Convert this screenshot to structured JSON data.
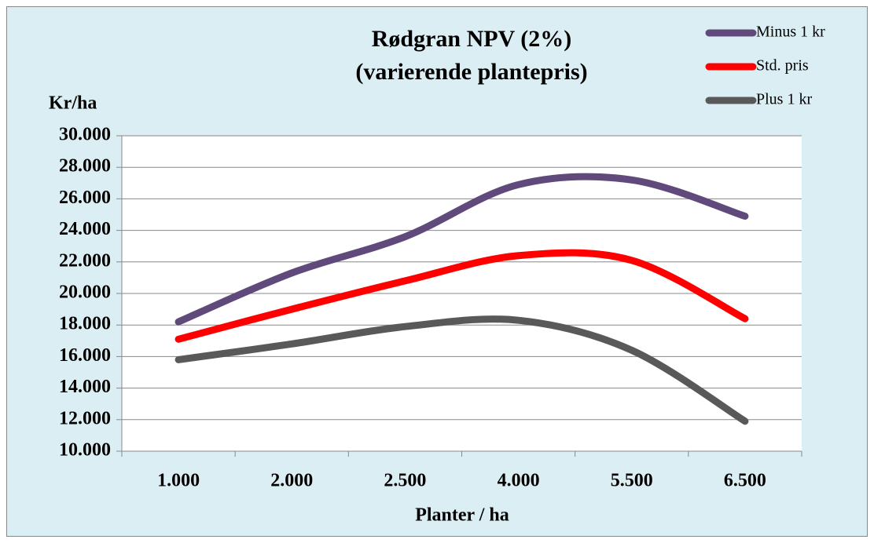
{
  "chart_data": {
    "type": "line",
    "title": "Rødgran NPV (2%)",
    "subtitle": "(varierende plantepris)",
    "y_label": "Kr/ha",
    "x_label": "Planter / ha",
    "categories": [
      "1.000",
      "2.000",
      "2.500",
      "4.000",
      "5.500",
      "6.500"
    ],
    "series": [
      {
        "name": "Minus 1 kr",
        "color": "#604a7b",
        "values": [
          18200,
          21300,
          23600,
          26900,
          27200,
          24900
        ]
      },
      {
        "name": "Std. pris",
        "color": "#ff0000",
        "values": [
          17100,
          19000,
          20800,
          22400,
          22100,
          18400
        ]
      },
      {
        "name": "Plus 1 kr",
        "color": "#595959",
        "values": [
          15800,
          16800,
          17900,
          18300,
          16400,
          11900
        ]
      }
    ],
    "ylim": [
      10000,
      30000
    ],
    "yticks": [
      {
        "value": 10000,
        "label": "10.000"
      },
      {
        "value": 12000,
        "label": "12.000"
      },
      {
        "value": 14000,
        "label": "14.000"
      },
      {
        "value": 16000,
        "label": "16.000"
      },
      {
        "value": 18000,
        "label": "18.000"
      },
      {
        "value": 20000,
        "label": "20.000"
      },
      {
        "value": 22000,
        "label": "22.000"
      },
      {
        "value": 24000,
        "label": "24.000"
      },
      {
        "value": 26000,
        "label": "26.000"
      },
      {
        "value": 28000,
        "label": "28.000"
      },
      {
        "value": 30000,
        "label": "30.000"
      }
    ],
    "grid": true,
    "legend": "top-right"
  }
}
